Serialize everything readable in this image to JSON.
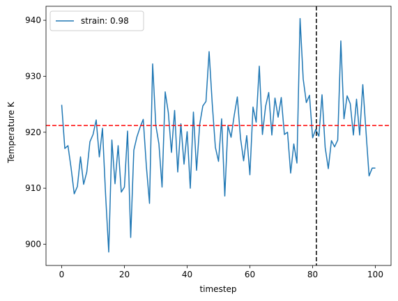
{
  "chart_data": {
    "type": "line",
    "xlabel": "timestep",
    "ylabel": "Temperature K",
    "xlim": [
      -5,
      105
    ],
    "ylim": [
      896.2,
      942.5
    ],
    "xticks": [
      0,
      20,
      40,
      60,
      80,
      100
    ],
    "yticks": [
      900,
      910,
      920,
      930,
      940
    ],
    "grid": false,
    "legend_position": "top-left",
    "series": [
      {
        "name": "strain: 0.98",
        "color": "#1f77b4",
        "x": [
          0,
          1,
          2,
          3,
          4,
          5,
          6,
          7,
          8,
          9,
          10,
          11,
          12,
          13,
          14,
          15,
          16,
          17,
          18,
          19,
          20,
          21,
          22,
          23,
          24,
          25,
          26,
          27,
          28,
          29,
          30,
          31,
          32,
          33,
          34,
          35,
          36,
          37,
          38,
          39,
          40,
          41,
          42,
          43,
          44,
          45,
          46,
          47,
          48,
          49,
          50,
          51,
          52,
          53,
          54,
          55,
          56,
          57,
          58,
          59,
          60,
          61,
          62,
          63,
          64,
          65,
          66,
          67,
          68,
          69,
          70,
          71,
          72,
          73,
          74,
          75,
          76,
          77,
          78,
          79,
          80,
          81,
          82,
          83,
          84,
          85,
          86,
          87,
          88,
          89,
          90,
          91,
          92,
          93,
          94,
          95,
          96,
          97,
          98,
          99,
          100
        ],
        "y": [
          924.9,
          917.1,
          917.6,
          913.6,
          909.0,
          910.3,
          915.6,
          910.7,
          912.9,
          918.3,
          919.6,
          922.2,
          915.6,
          920.7,
          908.8,
          898.6,
          918.6,
          910.8,
          917.6,
          909.3,
          910.2,
          920.2,
          901.2,
          916.8,
          919.2,
          920.9,
          922.3,
          913.9,
          907.3,
          932.2,
          921.3,
          917.9,
          910.2,
          927.2,
          923.5,
          916.4,
          923.9,
          912.9,
          921.5,
          914.3,
          920.1,
          910.0,
          923.6,
          913.2,
          921.4,
          924.7,
          925.5,
          934.4,
          925.1,
          917.3,
          914.8,
          922.4,
          908.6,
          921.2,
          919.1,
          923.0,
          926.3,
          919.0,
          914.9,
          919.4,
          912.4,
          924.5,
          921.8,
          931.8,
          919.6,
          924.6,
          927.1,
          919.5,
          926.1,
          922.7,
          926.2,
          919.6,
          920.0,
          912.7,
          917.9,
          914.5,
          940.3,
          929.5,
          925.3,
          926.6,
          919.0,
          920.5,
          919.3,
          926.7,
          917.3,
          913.5,
          918.5,
          917.4,
          918.6,
          936.3,
          922.4,
          926.5,
          925.1,
          919.5,
          925.9,
          919.5,
          928.5,
          920.3,
          912.2,
          913.6,
          913.6
        ]
      }
    ],
    "annotations": [
      {
        "type": "hline",
        "y": 921.2,
        "color": "#ff0000",
        "style": "dashed"
      },
      {
        "type": "vline",
        "x": 81.2,
        "color": "#000000",
        "style": "dashed"
      }
    ]
  }
}
